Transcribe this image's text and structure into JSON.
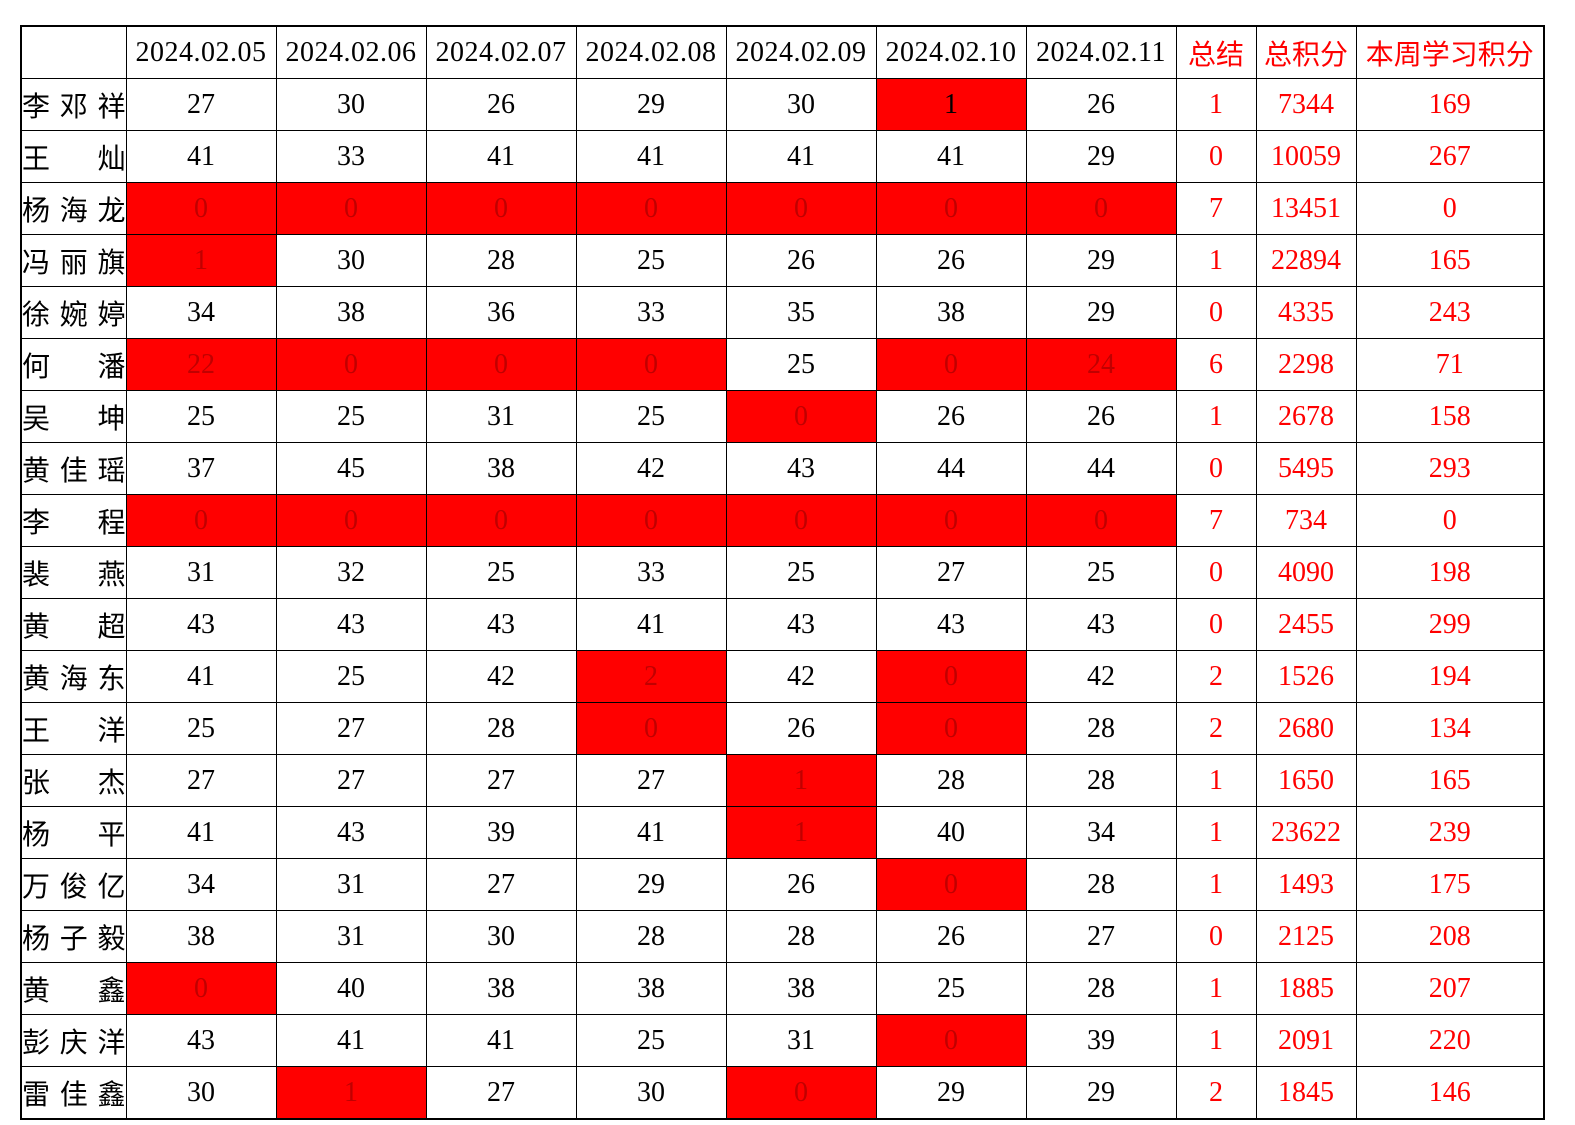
{
  "colors": {
    "cell_highlight_bg": "#ff0000",
    "highlight_text": "#c00000",
    "summary_text": "#ff0000",
    "normal_text": "#000000"
  },
  "table": {
    "corner_header": "",
    "date_headers": [
      "2024.02.05",
      "2024.02.06",
      "2024.02.07",
      "2024.02.08",
      "2024.02.09",
      "2024.02.10",
      "2024.02.11"
    ],
    "summary_header": "总结",
    "total_header": "总积分",
    "week_header": "本周学习积分",
    "rows": [
      {
        "name": "李邓祥",
        "days": [
          {
            "v": "27"
          },
          {
            "v": "30"
          },
          {
            "v": "26"
          },
          {
            "v": "29"
          },
          {
            "v": "30"
          },
          {
            "v": "1",
            "red": true,
            "fg": "black"
          },
          {
            "v": "26"
          }
        ],
        "summary": "1",
        "total": "7344",
        "week": "169"
      },
      {
        "name": "王灿",
        "days": [
          {
            "v": "41"
          },
          {
            "v": "33"
          },
          {
            "v": "41"
          },
          {
            "v": "41"
          },
          {
            "v": "41"
          },
          {
            "v": "41"
          },
          {
            "v": "29"
          }
        ],
        "summary": "0",
        "total": "10059",
        "week": "267"
      },
      {
        "name": "杨海龙",
        "days": [
          {
            "v": "0",
            "red": true
          },
          {
            "v": "0",
            "red": true
          },
          {
            "v": "0",
            "red": true
          },
          {
            "v": "0",
            "red": true
          },
          {
            "v": "0",
            "red": true
          },
          {
            "v": "0",
            "red": true
          },
          {
            "v": "0",
            "red": true
          }
        ],
        "summary": "7",
        "total": "13451",
        "week": "0"
      },
      {
        "name": "冯丽旗",
        "days": [
          {
            "v": "1",
            "red": true
          },
          {
            "v": "30"
          },
          {
            "v": "28"
          },
          {
            "v": "25"
          },
          {
            "v": "26"
          },
          {
            "v": "26"
          },
          {
            "v": "29"
          }
        ],
        "summary": "1",
        "total": "22894",
        "week": "165"
      },
      {
        "name": "徐婉婷",
        "days": [
          {
            "v": "34"
          },
          {
            "v": "38"
          },
          {
            "v": "36"
          },
          {
            "v": "33"
          },
          {
            "v": "35"
          },
          {
            "v": "38"
          },
          {
            "v": "29"
          }
        ],
        "summary": "0",
        "total": "4335",
        "week": "243"
      },
      {
        "name": "何潘",
        "days": [
          {
            "v": "22",
            "red": true
          },
          {
            "v": "0",
            "red": true
          },
          {
            "v": "0",
            "red": true
          },
          {
            "v": "0",
            "red": true
          },
          {
            "v": "25"
          },
          {
            "v": "0",
            "red": true
          },
          {
            "v": "24",
            "red": true
          }
        ],
        "summary": "6",
        "total": "2298",
        "week": "71"
      },
      {
        "name": "吴坤",
        "days": [
          {
            "v": "25"
          },
          {
            "v": "25"
          },
          {
            "v": "31"
          },
          {
            "v": "25"
          },
          {
            "v": "0",
            "red": true
          },
          {
            "v": "26"
          },
          {
            "v": "26"
          }
        ],
        "summary": "1",
        "total": "2678",
        "week": "158"
      },
      {
        "name": "黄佳瑶",
        "days": [
          {
            "v": "37"
          },
          {
            "v": "45"
          },
          {
            "v": "38"
          },
          {
            "v": "42"
          },
          {
            "v": "43"
          },
          {
            "v": "44"
          },
          {
            "v": "44"
          }
        ],
        "summary": "0",
        "total": "5495",
        "week": "293"
      },
      {
        "name": "李程",
        "days": [
          {
            "v": "0",
            "red": true
          },
          {
            "v": "0",
            "red": true
          },
          {
            "v": "0",
            "red": true
          },
          {
            "v": "0",
            "red": true
          },
          {
            "v": "0",
            "red": true
          },
          {
            "v": "0",
            "red": true
          },
          {
            "v": "0",
            "red": true
          }
        ],
        "summary": "7",
        "total": "734",
        "week": "0"
      },
      {
        "name": "裴燕",
        "days": [
          {
            "v": "31"
          },
          {
            "v": "32"
          },
          {
            "v": "25"
          },
          {
            "v": "33"
          },
          {
            "v": "25"
          },
          {
            "v": "27"
          },
          {
            "v": "25"
          }
        ],
        "summary": "0",
        "total": "4090",
        "week": "198"
      },
      {
        "name": "黄超",
        "days": [
          {
            "v": "43"
          },
          {
            "v": "43"
          },
          {
            "v": "43"
          },
          {
            "v": "41"
          },
          {
            "v": "43"
          },
          {
            "v": "43"
          },
          {
            "v": "43"
          }
        ],
        "summary": "0",
        "total": "2455",
        "week": "299"
      },
      {
        "name": "黄海东",
        "days": [
          {
            "v": "41"
          },
          {
            "v": "25"
          },
          {
            "v": "42"
          },
          {
            "v": "2",
            "red": true
          },
          {
            "v": "42"
          },
          {
            "v": "0",
            "red": true
          },
          {
            "v": "42"
          }
        ],
        "summary": "2",
        "total": "1526",
        "week": "194"
      },
      {
        "name": "王洋",
        "days": [
          {
            "v": "25"
          },
          {
            "v": "27"
          },
          {
            "v": "28"
          },
          {
            "v": "0",
            "red": true
          },
          {
            "v": "26"
          },
          {
            "v": "0",
            "red": true
          },
          {
            "v": "28"
          }
        ],
        "summary": "2",
        "total": "2680",
        "week": "134"
      },
      {
        "name": "张杰",
        "days": [
          {
            "v": "27"
          },
          {
            "v": "27"
          },
          {
            "v": "27"
          },
          {
            "v": "27"
          },
          {
            "v": "1",
            "red": true
          },
          {
            "v": "28"
          },
          {
            "v": "28"
          }
        ],
        "summary": "1",
        "total": "1650",
        "week": "165"
      },
      {
        "name": "杨平",
        "days": [
          {
            "v": "41"
          },
          {
            "v": "43"
          },
          {
            "v": "39"
          },
          {
            "v": "41"
          },
          {
            "v": "1",
            "red": true
          },
          {
            "v": "40"
          },
          {
            "v": "34"
          }
        ],
        "summary": "1",
        "total": "23622",
        "week": "239"
      },
      {
        "name": "万俊亿",
        "days": [
          {
            "v": "34"
          },
          {
            "v": "31"
          },
          {
            "v": "27"
          },
          {
            "v": "29"
          },
          {
            "v": "26"
          },
          {
            "v": "0",
            "red": true
          },
          {
            "v": "28"
          }
        ],
        "summary": "1",
        "total": "1493",
        "week": "175"
      },
      {
        "name": "杨子毅",
        "days": [
          {
            "v": "38"
          },
          {
            "v": "31"
          },
          {
            "v": "30"
          },
          {
            "v": "28"
          },
          {
            "v": "28"
          },
          {
            "v": "26"
          },
          {
            "v": "27"
          }
        ],
        "summary": "0",
        "total": "2125",
        "week": "208"
      },
      {
        "name": "黄鑫",
        "days": [
          {
            "v": "0",
            "red": true
          },
          {
            "v": "40"
          },
          {
            "v": "38"
          },
          {
            "v": "38"
          },
          {
            "v": "38"
          },
          {
            "v": "25"
          },
          {
            "v": "28"
          }
        ],
        "summary": "1",
        "total": "1885",
        "week": "207"
      },
      {
        "name": "彭庆洋",
        "days": [
          {
            "v": "43"
          },
          {
            "v": "41"
          },
          {
            "v": "41"
          },
          {
            "v": "25"
          },
          {
            "v": "31"
          },
          {
            "v": "0",
            "red": true
          },
          {
            "v": "39"
          }
        ],
        "summary": "1",
        "total": "2091",
        "week": "220"
      },
      {
        "name": "雷佳鑫",
        "days": [
          {
            "v": "30"
          },
          {
            "v": "1",
            "red": true
          },
          {
            "v": "27"
          },
          {
            "v": "30"
          },
          {
            "v": "0",
            "red": true
          },
          {
            "v": "29"
          },
          {
            "v": "29"
          }
        ],
        "summary": "2",
        "total": "1845",
        "week": "146"
      }
    ]
  }
}
